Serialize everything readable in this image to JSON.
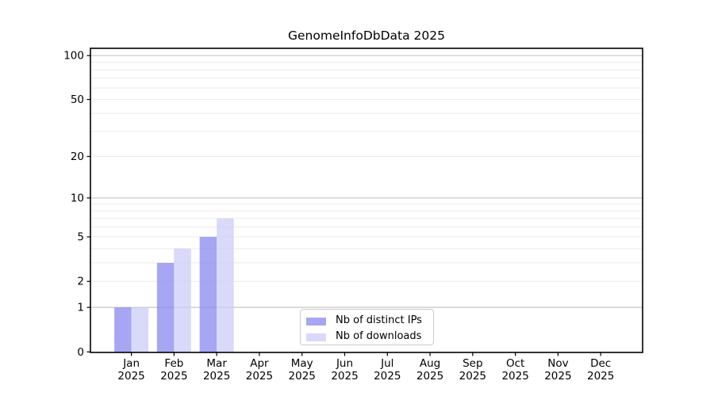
{
  "chart_data": {
    "type": "bar",
    "title": "GenomeInfoDbData 2025",
    "year_label": "2025",
    "categories": [
      "Jan",
      "Feb",
      "Mar",
      "Apr",
      "May",
      "Jun",
      "Jul",
      "Aug",
      "Sep",
      "Oct",
      "Nov",
      "Dec"
    ],
    "series": [
      {
        "name": "Nb of distinct IPs",
        "color": "#8888f0",
        "values": [
          1,
          3,
          5,
          0,
          0,
          0,
          0,
          0,
          0,
          0,
          0,
          0
        ]
      },
      {
        "name": "Nb of downloads",
        "color": "#ccccf8",
        "values": [
          1,
          4,
          7,
          0,
          0,
          0,
          0,
          0,
          0,
          0,
          0,
          0
        ]
      }
    ],
    "y_axis": {
      "scale": "log1p",
      "ticks": [
        0,
        1,
        2,
        5,
        10,
        20,
        50,
        100
      ],
      "major_gridlines": [
        1,
        10,
        100
      ],
      "minor_gridlines": [
        2,
        3,
        4,
        5,
        6,
        7,
        8,
        9,
        20,
        30,
        40,
        50,
        60,
        70,
        80,
        90
      ],
      "ylim": [
        0,
        117
      ]
    },
    "legend_position": "lower center",
    "grid": true
  },
  "colors": {
    "axis": "#000000",
    "tick_label": "#000000",
    "major_grid": "#c6c6c6",
    "minor_grid": "#ebebeb",
    "legend_border": "#cccccc",
    "background": "#ffffff"
  }
}
